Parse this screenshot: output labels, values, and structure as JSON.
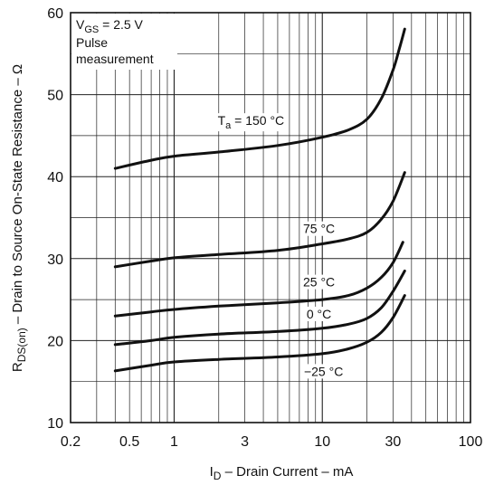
{
  "chart_data": {
    "type": "line",
    "x_scale": "log",
    "xlim": [
      0.2,
      100
    ],
    "ylim": [
      10,
      60
    ],
    "x_ticks": [
      "0.2",
      "0.5",
      "1",
      "3",
      "10",
      "30",
      "100"
    ],
    "x_tick_values": [
      0.2,
      0.5,
      1,
      3,
      10,
      30,
      100
    ],
    "y_ticks": [
      "10",
      "20",
      "30",
      "40",
      "50",
      "60"
    ],
    "y_tick_values": [
      10,
      20,
      30,
      40,
      50,
      60
    ],
    "xlabel": {
      "pre": "I",
      "sub": "D",
      "post": " – Drain Current – mA"
    },
    "ylabel": {
      "pre": "R",
      "sub": "DS(on)",
      "post": " – Drain to Source On-State Resistance – Ω"
    },
    "grid": true,
    "conditions": {
      "line1": {
        "pre": "V",
        "sub": "GS",
        "post": " = 2.5 V"
      },
      "line2": "Pulse",
      "line3": "measurement"
    },
    "series": [
      {
        "name": "Ta = 150 °C",
        "label": {
          "pre": "T",
          "sub": "a",
          "post": " = 150 °C"
        },
        "x": [
          0.4,
          0.7,
          1,
          2,
          5,
          10,
          15,
          20,
          25,
          30,
          33,
          36
        ],
        "y": [
          41,
          42,
          42.5,
          43,
          43.8,
          44.8,
          45.7,
          47,
          49.5,
          53,
          55.5,
          58
        ]
      },
      {
        "name": "75 °C",
        "label": "75 °C",
        "x": [
          0.4,
          0.7,
          1,
          2,
          5,
          10,
          15,
          20,
          25,
          30,
          36
        ],
        "y": [
          29,
          29.7,
          30.1,
          30.5,
          31,
          31.8,
          32.4,
          33.2,
          34.8,
          37,
          40.5
        ]
      },
      {
        "name": "25 °C",
        "label": "25 °C",
        "x": [
          0.4,
          0.7,
          1,
          2,
          5,
          10,
          15,
          20,
          25,
          30,
          35
        ],
        "y": [
          23,
          23.5,
          23.8,
          24.2,
          24.6,
          25,
          25.5,
          26.4,
          27.7,
          29.5,
          32
        ]
      },
      {
        "name": "0 °C",
        "label": "0 °C",
        "x": [
          0.4,
          0.7,
          1,
          2,
          5,
          10,
          15,
          20,
          25,
          30,
          36
        ],
        "y": [
          19.5,
          20,
          20.4,
          20.8,
          21.1,
          21.5,
          22,
          22.7,
          24,
          26,
          28.5
        ]
      },
      {
        "name": "−25 °C",
        "label": "−25 °C",
        "x": [
          0.4,
          0.7,
          1,
          2,
          5,
          10,
          15,
          20,
          25,
          30,
          36
        ],
        "y": [
          16.3,
          17,
          17.4,
          17.7,
          18,
          18.4,
          19,
          19.8,
          21,
          22.8,
          25.5
        ]
      }
    ]
  }
}
